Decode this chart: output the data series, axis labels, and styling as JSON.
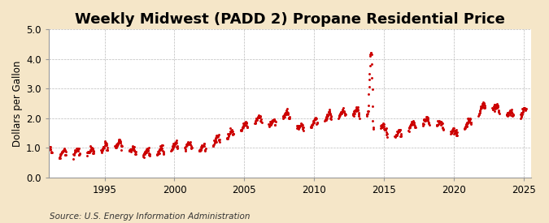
{
  "title": "Weekly Midwest (PADD 2) Propane Residential Price",
  "ylabel": "Dollars per Gallon",
  "source": "Source: U.S. Energy Information Administration",
  "line_color": "#cc0000",
  "outer_background": "#f5e6c8",
  "plot_background": "#ffffff",
  "xlim_start": 1991.0,
  "xlim_end": 2025.5,
  "ylim": [
    0.0,
    5.0
  ],
  "yticks": [
    0.0,
    1.0,
    2.0,
    3.0,
    4.0,
    5.0
  ],
  "xticks": [
    1995,
    2000,
    2005,
    2010,
    2015,
    2020,
    2025
  ],
  "title_fontsize": 13,
  "label_fontsize": 8.5,
  "tick_fontsize": 8.5,
  "source_fontsize": 7.5
}
